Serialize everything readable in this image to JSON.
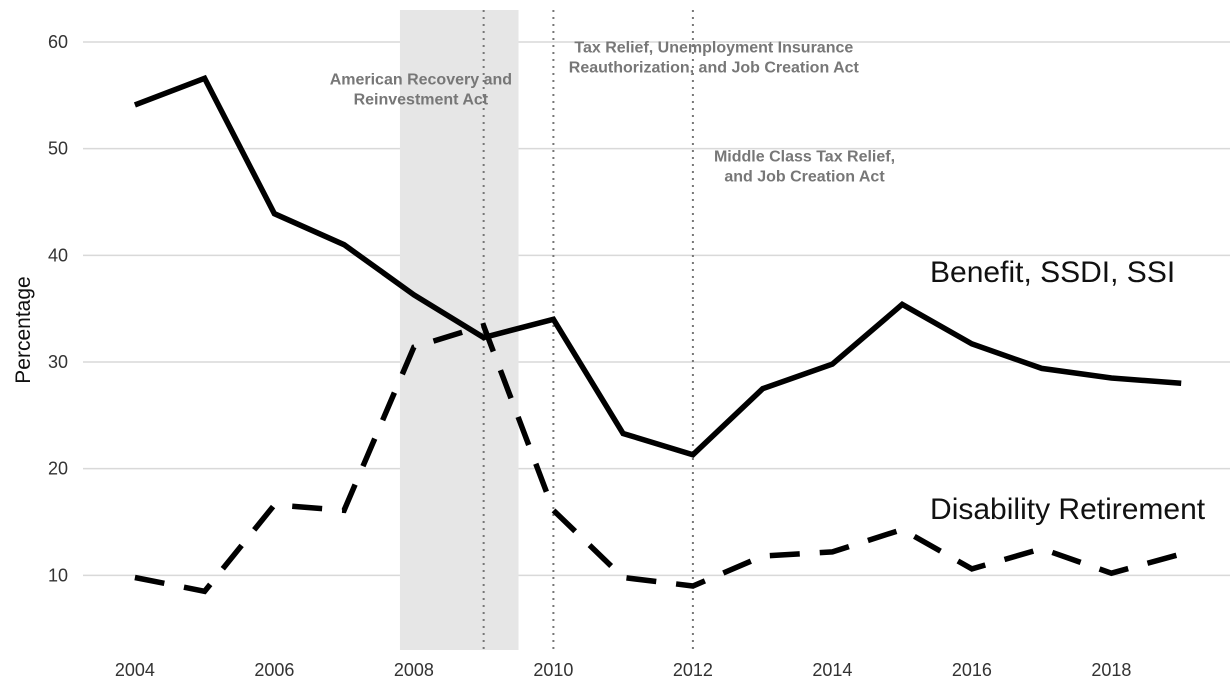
{
  "chart_data": {
    "type": "line",
    "title": "",
    "xlabel": "",
    "ylabel": "Percentage",
    "xlim": [
      2003.5,
      2019.7
    ],
    "ylim": [
      3,
      63
    ],
    "x_ticks": [
      2004,
      2006,
      2008,
      2010,
      2012,
      2014,
      2016,
      2018
    ],
    "y_ticks": [
      10,
      20,
      30,
      40,
      50,
      60
    ],
    "grid": "horizontal",
    "x": [
      2004,
      2005,
      2006,
      2007,
      2008,
      2009,
      2010,
      2011,
      2012,
      2013,
      2014,
      2015,
      2016,
      2017,
      2018,
      2019
    ],
    "series": [
      {
        "name": "Benefit, SSDI, SSI",
        "style": "solid",
        "color": "#000000",
        "values": [
          54.1,
          56.6,
          43.9,
          41.0,
          36.3,
          32.3,
          34.0,
          23.3,
          21.3,
          27.5,
          29.8,
          35.4,
          31.7,
          29.4,
          28.5,
          28.0
        ]
      },
      {
        "name": "Disability Retirement",
        "style": "dashed",
        "color": "#000000",
        "values": [
          9.8,
          8.5,
          16.6,
          16.1,
          31.4,
          33.4,
          16.1,
          9.8,
          9.0,
          11.8,
          12.2,
          14.3,
          10.6,
          12.5,
          10.2,
          12.0
        ]
      }
    ],
    "shaded_region": {
      "x": [
        2007.8,
        2009.5
      ],
      "color": "#e6e6e6"
    },
    "vertical_lines": [
      2009,
      2010,
      2012
    ],
    "annotations": [
      {
        "lines": [
          "American Recovery and",
          "Reinvestment Act"
        ],
        "x": 2008.1,
        "y": 56
      },
      {
        "lines": [
          "Tax Relief, Unemployment Insurance",
          "Reauthorization, and Job Creation Act"
        ],
        "x": 2012.3,
        "y": 59
      },
      {
        "lines": [
          "Middle Class Tax Relief,",
          "and Job Creation Act"
        ],
        "x": 2013.6,
        "y": 48.8
      }
    ],
    "series_labels": [
      {
        "series": "Benefit, SSDI, SSI",
        "x": 2015.4,
        "y": 37.5
      },
      {
        "series": "Disability Retirement",
        "x": 2015.4,
        "y": 15.3
      }
    ]
  }
}
